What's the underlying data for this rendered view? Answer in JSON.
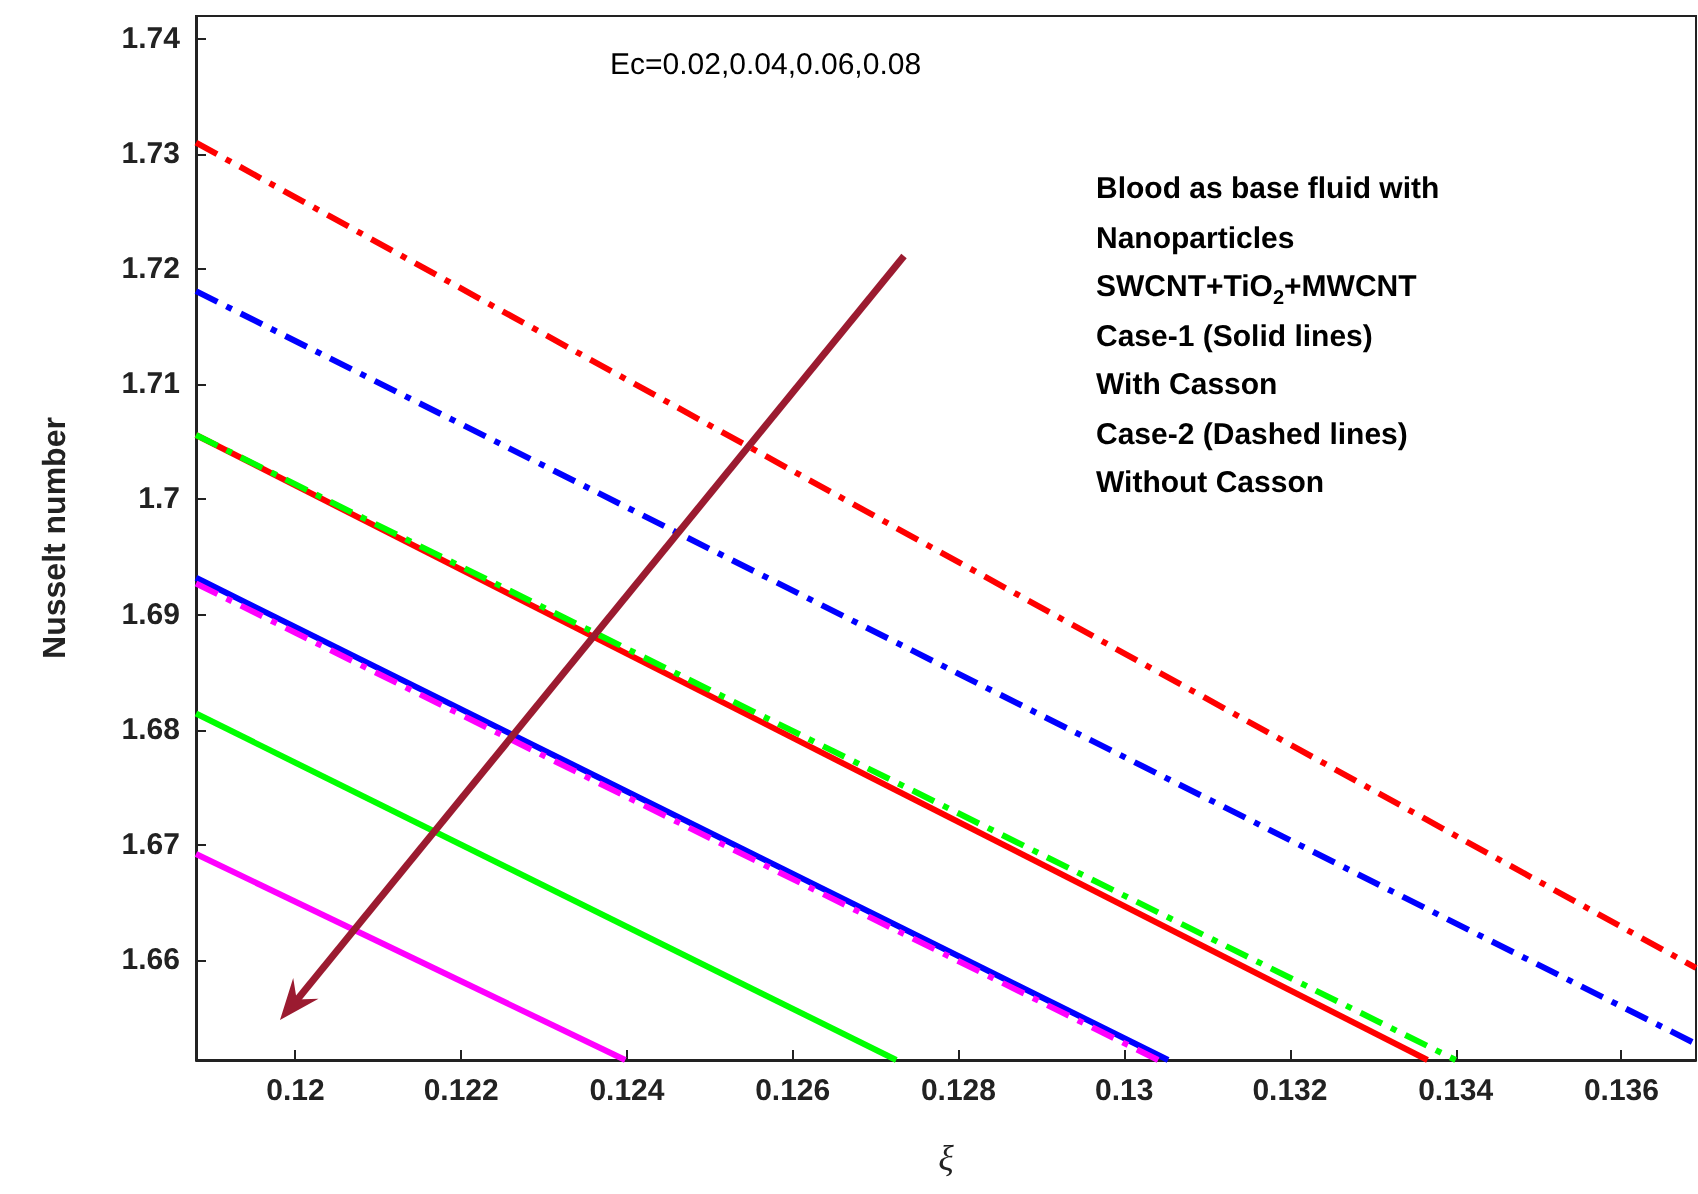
{
  "chart_data": {
    "type": "line",
    "xlabel": "ξ",
    "ylabel": "Nusselt number",
    "xlim": [
      0.1188,
      0.1369
    ],
    "ylim": [
      1.6513,
      1.742
    ],
    "xticks": [
      0.12,
      0.122,
      0.124,
      0.126,
      0.128,
      0.13,
      0.132,
      0.134,
      0.136
    ],
    "yticks": [
      1.66,
      1.67,
      1.68,
      1.69,
      1.7,
      1.71,
      1.72,
      1.73,
      1.74
    ],
    "grid": false,
    "marker": "none",
    "annotations": [
      "Ec=0.02,0.04,0.06,0.08",
      "Blood as base fluid with",
      "Nanoparticles",
      "SWCNT+TiO$_{2}$+MWCNT",
      "Case-1 (Solid lines)",
      "With Casson",
      "Case-2 (Dashed lines)",
      "Without Casson"
    ],
    "series": [
      {
        "color": "#ff0000",
        "line_style": "dashed",
        "x": [
          0.1188,
          0.1369
        ],
        "values": [
          1.731,
          1.6593
        ]
      },
      {
        "color": "#0000ff",
        "line_style": "dashed",
        "x": [
          0.1188,
          0.1369
        ],
        "values": [
          1.7181,
          1.6527
        ]
      },
      {
        "color": "#00ff00",
        "line_style": "dashed",
        "x": [
          0.1188,
          0.134
        ],
        "values": [
          1.7056,
          1.6513
        ]
      },
      {
        "color": "#ff0000",
        "line_style": "solid",
        "x": [
          0.1188,
          0.13366
        ],
        "values": [
          1.7056,
          1.6513
        ]
      },
      {
        "color": "#0000ff",
        "line_style": "solid",
        "x": [
          0.1188,
          0.13053
        ],
        "values": [
          1.6932,
          1.6513
        ]
      },
      {
        "color": "#ff00ff",
        "line_style": "dashed",
        "x": [
          0.1188,
          0.13041
        ],
        "values": [
          1.6927,
          1.6513
        ]
      },
      {
        "color": "#00ff00",
        "line_style": "solid",
        "x": [
          0.1188,
          0.12725
        ],
        "values": [
          1.6814,
          1.6513
        ]
      },
      {
        "color": "#ff00ff",
        "line_style": "solid",
        "x": [
          0.1188,
          0.12398
        ],
        "values": [
          1.6692,
          1.6513
        ]
      }
    ]
  }
}
